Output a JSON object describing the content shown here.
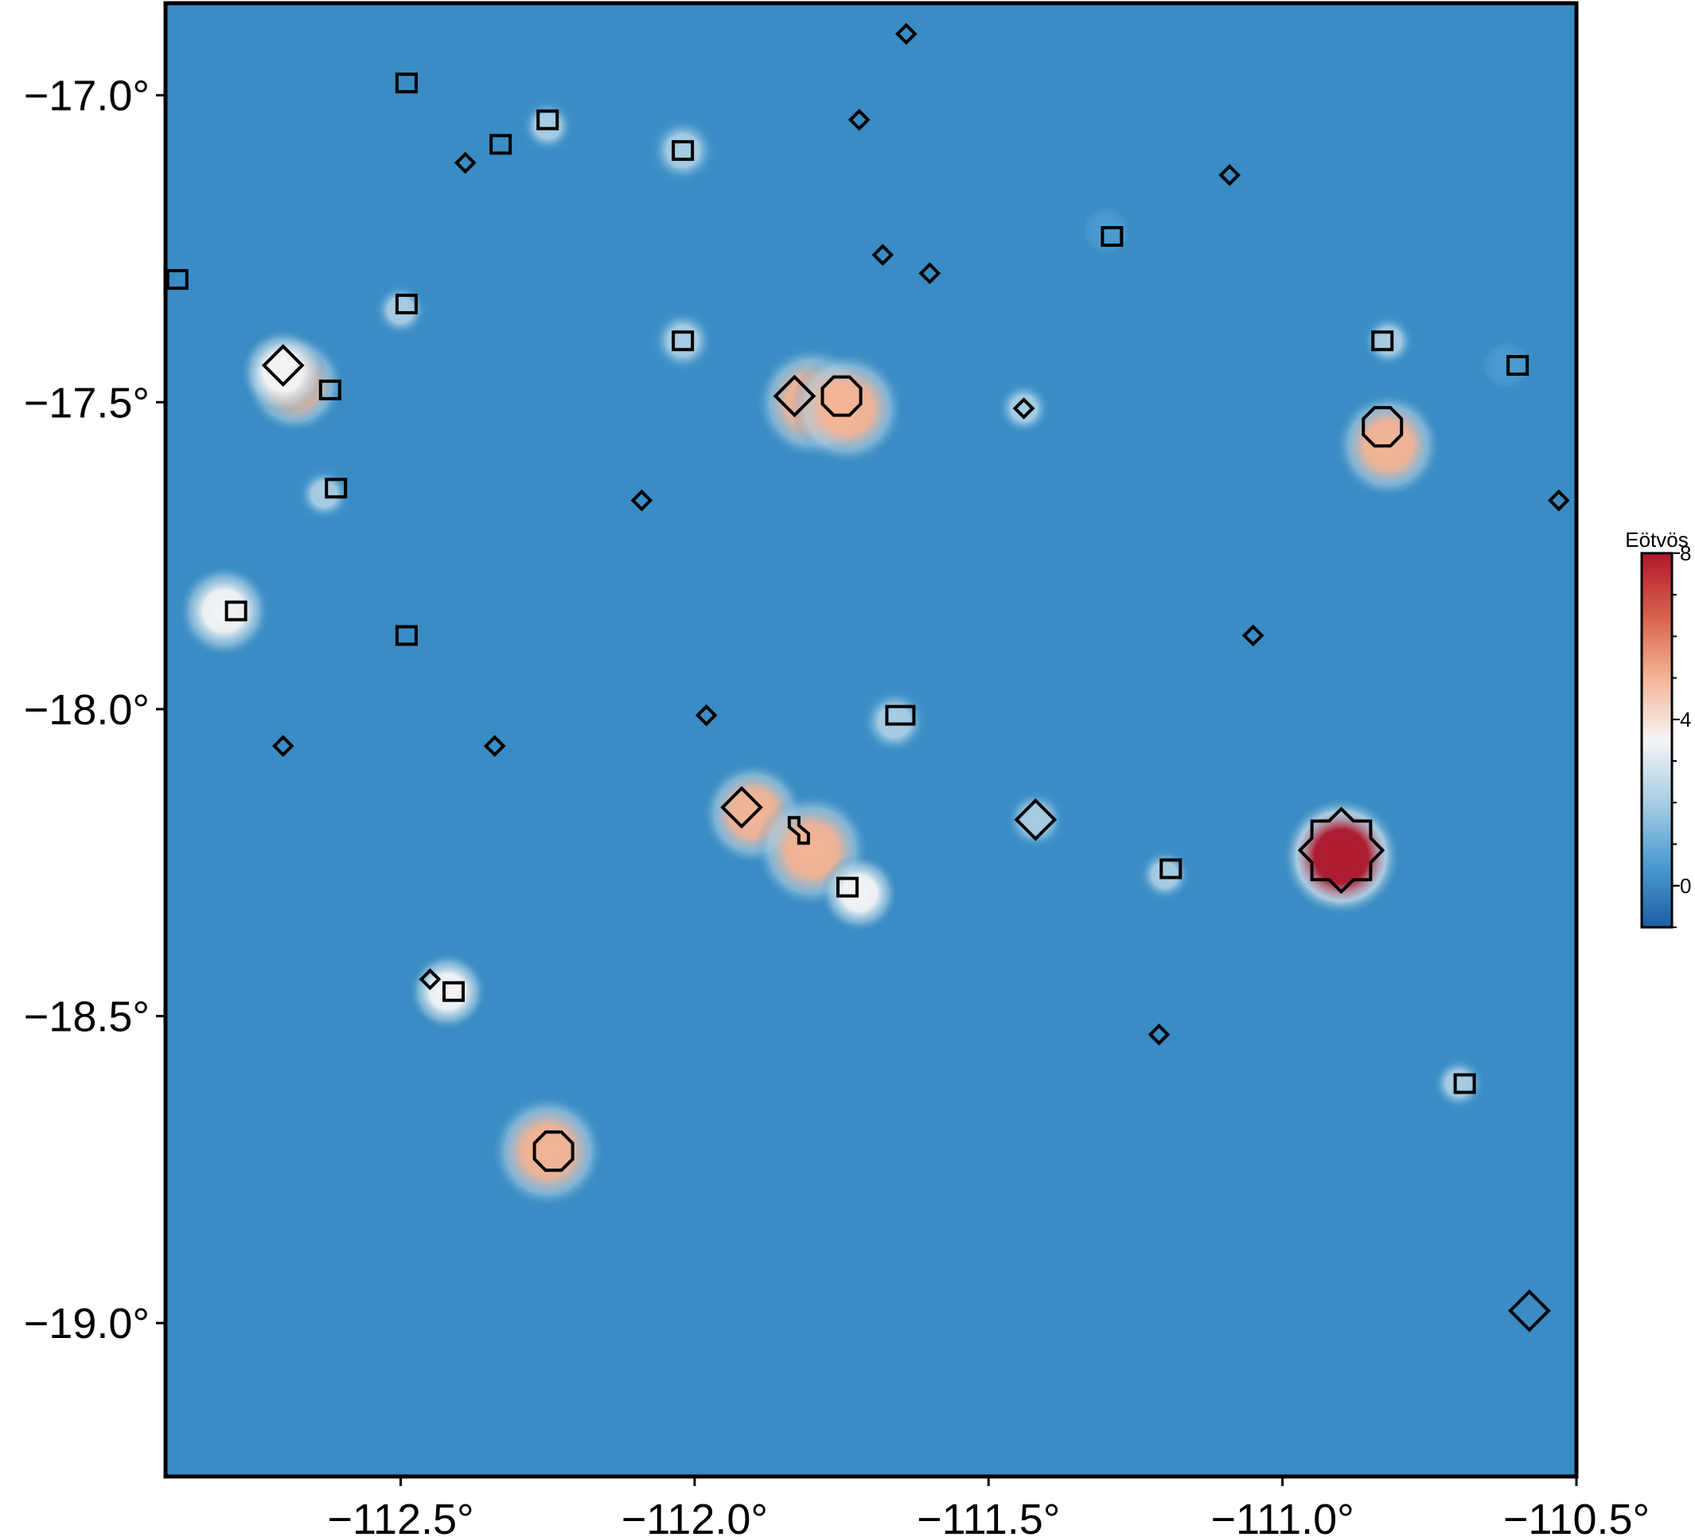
{
  "map": {
    "lon_range": [
      -112.9,
      -110.5
    ],
    "lat_range": [
      -19.25,
      -16.85
    ],
    "background_color": "#3a8cc4",
    "x_ticks": [
      {
        "value": -112.5,
        "label": "−112.5°"
      },
      {
        "value": -112.0,
        "label": "−112.0°"
      },
      {
        "value": -111.5,
        "label": "−111.5°"
      },
      {
        "value": -111.0,
        "label": "−111.0°"
      },
      {
        "value": -110.5,
        "label": "−110.5°"
      }
    ],
    "y_ticks": [
      {
        "value": -17.0,
        "label": "−17.0°"
      },
      {
        "value": -17.5,
        "label": "−17.5°"
      },
      {
        "value": -18.0,
        "label": "−18.0°"
      },
      {
        "value": -18.5,
        "label": "−18.5°"
      },
      {
        "value": -19.0,
        "label": "−19.0°"
      }
    ]
  },
  "colorbar": {
    "title": "Eötvös",
    "min": -1,
    "max": 8,
    "ticks": [
      {
        "value": 0,
        "label": "0"
      },
      {
        "value": 4,
        "label": "4"
      },
      {
        "value": 8,
        "label": "8"
      }
    ],
    "colors": [
      "#1d5fa3",
      "#4d9bd0",
      "#a8cde3",
      "#f5f5f5",
      "#f4b596",
      "#d6604d",
      "#b2182b"
    ]
  },
  "anomalies": [
    {
      "lon": -112.68,
      "lat": -17.47,
      "value": 4.5
    },
    {
      "lon": -112.7,
      "lat": -17.45,
      "value": 3.6
    },
    {
      "lon": -112.5,
      "lat": -17.35,
      "value": 1.5
    },
    {
      "lon": -112.25,
      "lat": -17.05,
      "value": 1.5
    },
    {
      "lon": -112.02,
      "lat": -17.09,
      "value": 2.5
    },
    {
      "lon": -112.02,
      "lat": -17.4,
      "value": 2.2
    },
    {
      "lon": -112.63,
      "lat": -17.65,
      "value": 1.5
    },
    {
      "lon": -112.8,
      "lat": -17.84,
      "value": 4.0
    },
    {
      "lon": -111.8,
      "lat": -17.5,
      "value": 5.5
    },
    {
      "lon": -111.74,
      "lat": -17.51,
      "value": 5.5
    },
    {
      "lon": -111.44,
      "lat": -17.51,
      "value": 1.5
    },
    {
      "lon": -111.3,
      "lat": -17.22,
      "value": 1.2
    },
    {
      "lon": -110.82,
      "lat": -17.4,
      "value": 1.5
    },
    {
      "lon": -110.82,
      "lat": -17.57,
      "value": 5.0
    },
    {
      "lon": -110.62,
      "lat": -17.44,
      "value": 1.2
    },
    {
      "lon": -111.66,
      "lat": -18.02,
      "value": 2.5
    },
    {
      "lon": -111.9,
      "lat": -18.17,
      "value": 4.8
    },
    {
      "lon": -111.8,
      "lat": -18.23,
      "value": 5.6
    },
    {
      "lon": -111.72,
      "lat": -18.3,
      "value": 3.0
    },
    {
      "lon": -111.42,
      "lat": -18.18,
      "value": 2.0
    },
    {
      "lon": -111.2,
      "lat": -18.27,
      "value": 1.5
    },
    {
      "lon": -110.9,
      "lat": -18.24,
      "value": 8.0
    },
    {
      "lon": -112.42,
      "lat": -18.46,
      "value": 3.0
    },
    {
      "lon": -112.25,
      "lat": -18.72,
      "value": 5.5
    },
    {
      "lon": -110.7,
      "lat": -18.61,
      "value": 1.5
    }
  ],
  "markers": [
    {
      "type": "square",
      "lon": -112.49,
      "lat": -16.98,
      "size": "small"
    },
    {
      "type": "square",
      "lon": -112.33,
      "lat": -17.08,
      "size": "small"
    },
    {
      "type": "square",
      "lon": -112.25,
      "lat": -17.04,
      "size": "small"
    },
    {
      "type": "square",
      "lon": -112.02,
      "lat": -17.09,
      "size": "small"
    },
    {
      "type": "square",
      "lon": -112.49,
      "lat": -17.34,
      "size": "small"
    },
    {
      "type": "square",
      "lon": -112.88,
      "lat": -17.3,
      "size": "small"
    },
    {
      "type": "square",
      "lon": -112.62,
      "lat": -17.48,
      "size": "small"
    },
    {
      "type": "square",
      "lon": -112.02,
      "lat": -17.4,
      "size": "small"
    },
    {
      "type": "square",
      "lon": -112.61,
      "lat": -17.64,
      "size": "small"
    },
    {
      "type": "square",
      "lon": -112.78,
      "lat": -17.84,
      "size": "small"
    },
    {
      "type": "square",
      "lon": -112.49,
      "lat": -17.88,
      "size": "small"
    },
    {
      "type": "square",
      "lon": -111.29,
      "lat": -17.23,
      "size": "small"
    },
    {
      "type": "square",
      "lon": -110.83,
      "lat": -17.4,
      "size": "small"
    },
    {
      "type": "square",
      "lon": -110.6,
      "lat": -17.44,
      "size": "small"
    },
    {
      "type": "square",
      "lon": -111.65,
      "lat": -18.01,
      "size": "wide"
    },
    {
      "type": "square",
      "lon": -111.74,
      "lat": -18.29,
      "size": "small"
    },
    {
      "type": "square",
      "lon": -111.19,
      "lat": -18.26,
      "size": "small"
    },
    {
      "type": "square",
      "lon": -112.41,
      "lat": -18.46,
      "size": "small"
    },
    {
      "type": "square",
      "lon": -110.69,
      "lat": -18.61,
      "size": "small"
    },
    {
      "type": "diamond",
      "lon": -111.64,
      "lat": -16.9,
      "size": "small"
    },
    {
      "type": "diamond",
      "lon": -111.72,
      "lat": -17.04,
      "size": "small"
    },
    {
      "type": "diamond",
      "lon": -112.39,
      "lat": -17.11,
      "size": "small"
    },
    {
      "type": "diamond",
      "lon": -111.09,
      "lat": -17.13,
      "size": "small"
    },
    {
      "type": "diamond",
      "lon": -111.68,
      "lat": -17.26,
      "size": "small"
    },
    {
      "type": "diamond",
      "lon": -111.6,
      "lat": -17.29,
      "size": "small"
    },
    {
      "type": "diamond",
      "lon": -112.7,
      "lat": -17.44,
      "size": "large"
    },
    {
      "type": "diamond",
      "lon": -111.83,
      "lat": -17.49,
      "size": "large"
    },
    {
      "type": "diamond",
      "lon": -111.44,
      "lat": -17.51,
      "size": "small"
    },
    {
      "type": "diamond",
      "lon": -112.09,
      "lat": -17.66,
      "size": "small"
    },
    {
      "type": "diamond",
      "lon": -110.53,
      "lat": -17.66,
      "size": "small"
    },
    {
      "type": "diamond",
      "lon": -111.05,
      "lat": -17.88,
      "size": "small"
    },
    {
      "type": "diamond",
      "lon": -111.98,
      "lat": -18.01,
      "size": "small"
    },
    {
      "type": "diamond",
      "lon": -112.7,
      "lat": -18.06,
      "size": "small"
    },
    {
      "type": "diamond",
      "lon": -112.34,
      "lat": -18.06,
      "size": "small"
    },
    {
      "type": "diamond",
      "lon": -111.92,
      "lat": -18.16,
      "size": "large"
    },
    {
      "type": "diamond",
      "lon": -111.42,
      "lat": -18.18,
      "size": "large"
    },
    {
      "type": "diamond",
      "lon": -112.45,
      "lat": -18.44,
      "size": "small"
    },
    {
      "type": "diamond",
      "lon": -111.21,
      "lat": -18.53,
      "size": "small"
    },
    {
      "type": "diamond",
      "lon": -110.58,
      "lat": -18.98,
      "size": "large"
    },
    {
      "type": "octagon",
      "lon": -111.75,
      "lat": -17.49
    },
    {
      "type": "octagon",
      "lon": -110.83,
      "lat": -17.54
    },
    {
      "type": "octagon",
      "lon": -112.24,
      "lat": -18.72
    },
    {
      "type": "star",
      "lon": -110.9,
      "lat": -18.23
    },
    {
      "type": "outline",
      "lon": -111.82,
      "lat": -18.2
    }
  ]
}
